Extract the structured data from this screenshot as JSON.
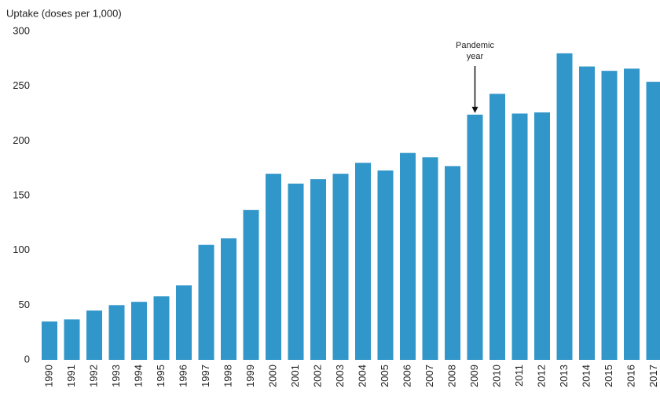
{
  "chart_data": {
    "type": "bar",
    "y_label": "Uptake (doses per 1,000)",
    "categories": [
      "1990",
      "1991",
      "1992",
      "1993",
      "1994",
      "1995",
      "1996",
      "1997",
      "1998",
      "1999",
      "2000",
      "2001",
      "2002",
      "2003",
      "2004",
      "2005",
      "2006",
      "2007",
      "2008",
      "2009",
      "2010",
      "2011",
      "2012",
      "2013",
      "2014",
      "2015",
      "2016",
      "2017"
    ],
    "values": [
      35,
      37,
      45,
      50,
      53,
      58,
      68,
      105,
      111,
      137,
      170,
      161,
      165,
      170,
      180,
      173,
      189,
      185,
      177,
      224,
      243,
      225,
      226,
      280,
      268,
      264,
      266,
      254
    ],
    "color": "#3196c9",
    "ylim": [
      0,
      300
    ],
    "yticks": [
      0,
      50,
      100,
      150,
      200,
      250,
      300
    ],
    "grid": false,
    "annotation": {
      "lines": [
        "Pandemic",
        "year"
      ],
      "category": "2009"
    }
  }
}
